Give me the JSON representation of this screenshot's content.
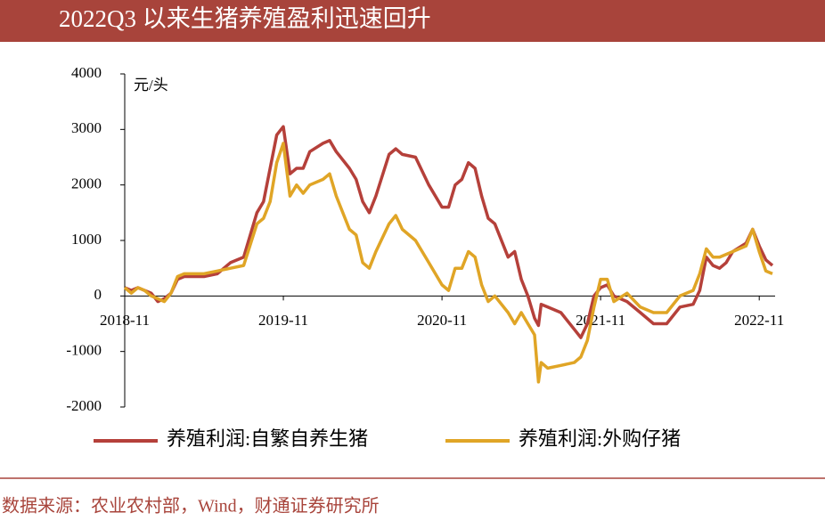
{
  "chart_data": {
    "type": "line",
    "title": "2022Q3 以来生猪养殖盈利迅速回升",
    "y_unit": "元/头",
    "source": "数据来源：农业农村部，Wind，财通证券研究所",
    "x": [
      0,
      0.5,
      1,
      1.5,
      2,
      2.5,
      3,
      3.5,
      4,
      4.5,
      5,
      6,
      7,
      8,
      9,
      10,
      10.5,
      11,
      11.5,
      12,
      12.5,
      13,
      13.5,
      14,
      15,
      15.5,
      16,
      17,
      17.5,
      18,
      18.5,
      19,
      20,
      20.5,
      21,
      22,
      23,
      24,
      24.5,
      25,
      25.5,
      26,
      26.5,
      27,
      27.5,
      28,
      29,
      29.5,
      30,
      30.5,
      31,
      31.3,
      31.5,
      32,
      33,
      34,
      34.5,
      35,
      35.5,
      36,
      36.5,
      37,
      38,
      39,
      40,
      41,
      42,
      43,
      43.5,
      44,
      44.5,
      45,
      45.5,
      46,
      47,
      47.5,
      48,
      48.5,
      49
    ],
    "series": [
      {
        "name": "养殖利润:自繁自养生猪",
        "color": "#b5403a",
        "values": [
          150,
          100,
          150,
          100,
          50,
          -100,
          -50,
          50,
          300,
          350,
          350,
          350,
          400,
          600,
          700,
          1500,
          1700,
          2300,
          2900,
          3050,
          2200,
          2300,
          2300,
          2600,
          2750,
          2800,
          2600,
          2300,
          2100,
          1700,
          1500,
          1800,
          2550,
          2650,
          2550,
          2500,
          2000,
          1600,
          1600,
          2000,
          2100,
          2400,
          2300,
          1800,
          1400,
          1300,
          700,
          800,
          300,
          0,
          -400,
          -530,
          -150,
          -200,
          -300,
          -600,
          -750,
          -500,
          0,
          150,
          200,
          0,
          -100,
          -300,
          -500,
          -500,
          -200,
          -150,
          100,
          700,
          550,
          500,
          600,
          800,
          950,
          1200,
          900,
          650,
          550
        ]
      },
      {
        "name": "养殖利润:外购仔猪",
        "color": "#e0a526",
        "values": [
          150,
          50,
          150,
          100,
          0,
          -50,
          -100,
          50,
          350,
          400,
          400,
          400,
          450,
          500,
          550,
          1300,
          1400,
          1700,
          2400,
          2750,
          1800,
          2000,
          1850,
          2000,
          2100,
          2200,
          1800,
          1200,
          1100,
          600,
          500,
          800,
          1300,
          1450,
          1200,
          1000,
          600,
          200,
          100,
          500,
          500,
          800,
          700,
          200,
          -100,
          0,
          -300,
          -500,
          -300,
          -500,
          -700,
          -1550,
          -1200,
          -1300,
          -1250,
          -1200,
          -1100,
          -800,
          -200,
          300,
          300,
          -100,
          50,
          -200,
          -300,
          -300,
          0,
          100,
          400,
          850,
          700,
          700,
          750,
          800,
          900,
          1200,
          800,
          450,
          400
        ]
      }
    ],
    "xlim": [
      0,
      49.2
    ],
    "xticks": [
      {
        "value": 0,
        "label": "2018-11"
      },
      {
        "value": 12,
        "label": "2019-11"
      },
      {
        "value": 24,
        "label": "2020-11"
      },
      {
        "value": 36,
        "label": "2021-11"
      },
      {
        "value": 48,
        "label": "2022-11"
      }
    ],
    "ylim": [
      -2000,
      4000
    ],
    "yticks": [
      -2000,
      -1000,
      0,
      1000,
      2000,
      3000,
      4000
    ]
  }
}
